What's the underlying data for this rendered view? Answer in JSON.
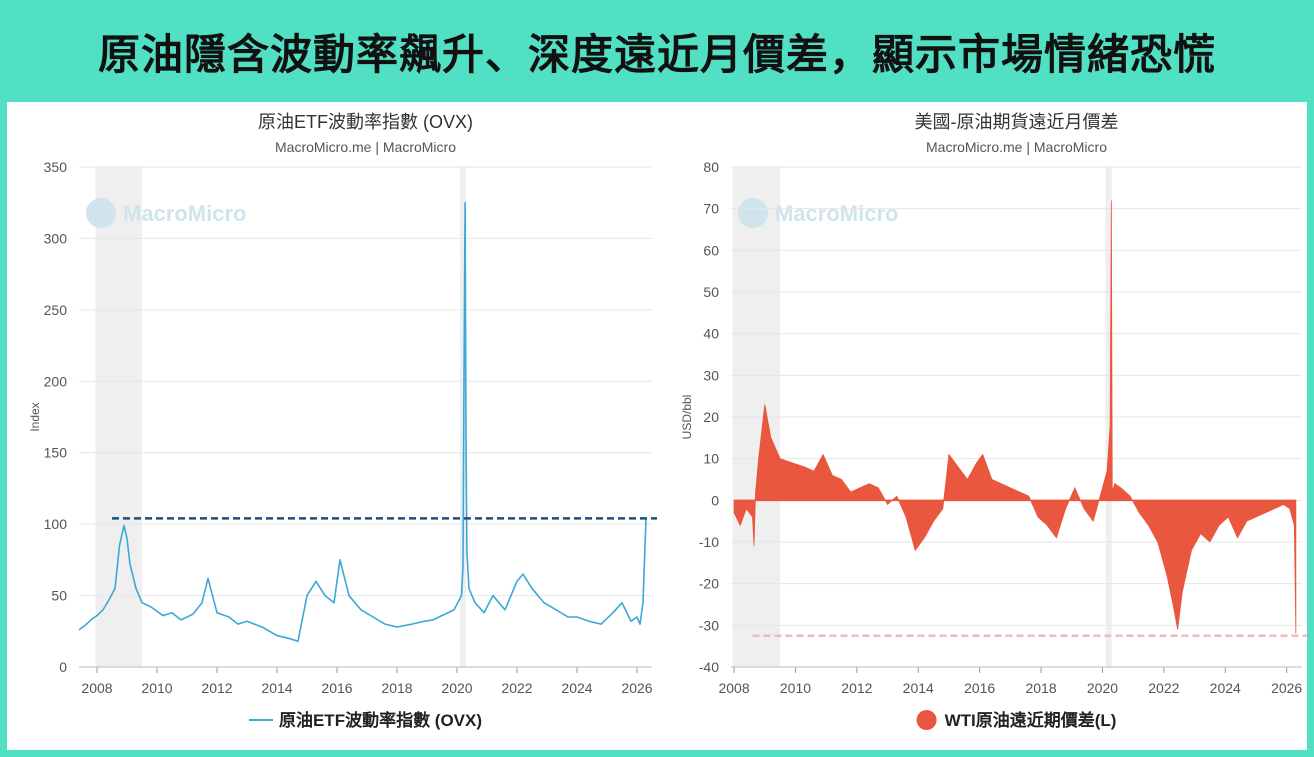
{
  "headline": "原油隱含波動率飆升、深度遠近月價差，顯示市場情緒恐慌",
  "watermark": "MacroMicro",
  "colors": {
    "background": "#52e0c4",
    "ovx_line": "#3ba8d8",
    "ovx_threshold": "#1f4f7a",
    "spread_fill": "#e9573f",
    "spread_threshold": "#f4b8b8",
    "recession_shade": "#efefef"
  },
  "chart_data": [
    {
      "type": "line",
      "title": "原油ETF波動率指數 (OVX)",
      "subtitle": "MacroMicro.me | MacroMicro",
      "xlabel": "",
      "ylabel": "Index",
      "xlim": [
        2007.4,
        2026.5
      ],
      "ylim": [
        0,
        350
      ],
      "yticks": [
        0,
        50,
        100,
        150,
        200,
        250,
        300,
        350
      ],
      "xticks": [
        2008,
        2010,
        2012,
        2014,
        2016,
        2018,
        2020,
        2022,
        2024,
        2026
      ],
      "grid": true,
      "legend_position": "bottom",
      "shaded_ranges": [
        [
          2007.95,
          2009.5
        ],
        [
          2020.1,
          2020.3
        ]
      ],
      "reference_line": {
        "y": 104,
        "from_x": 2008.5,
        "style": "dashed"
      },
      "series": [
        {
          "name": "原油ETF波動率指數 (OVX)",
          "x": [
            2007.4,
            2007.6,
            2007.8,
            2008.0,
            2008.2,
            2008.4,
            2008.6,
            2008.75,
            2008.9,
            2009.0,
            2009.1,
            2009.3,
            2009.5,
            2009.8,
            2010.2,
            2010.5,
            2010.8,
            2011.2,
            2011.5,
            2011.7,
            2012.0,
            2012.4,
            2012.7,
            2013.0,
            2013.5,
            2014.0,
            2014.4,
            2014.7,
            2015.0,
            2015.3,
            2015.6,
            2015.9,
            2016.1,
            2016.4,
            2016.8,
            2017.2,
            2017.6,
            2018.0,
            2018.5,
            2018.9,
            2019.2,
            2019.6,
            2019.9,
            2020.15,
            2020.2,
            2020.23,
            2020.27,
            2020.3,
            2020.33,
            2020.4,
            2020.6,
            2020.9,
            2021.2,
            2021.6,
            2022.0,
            2022.2,
            2022.5,
            2022.9,
            2023.3,
            2023.7,
            2024.0,
            2024.4,
            2024.8,
            2025.2,
            2025.5,
            2025.8,
            2026.0,
            2026.1,
            2026.2,
            2026.25,
            2026.3
          ],
          "values": [
            26,
            29,
            33,
            36,
            40,
            47,
            55,
            85,
            99,
            90,
            72,
            55,
            45,
            42,
            36,
            38,
            33,
            37,
            45,
            62,
            38,
            35,
            30,
            32,
            28,
            22,
            20,
            18,
            50,
            60,
            50,
            45,
            75,
            50,
            40,
            35,
            30,
            28,
            30,
            32,
            33,
            37,
            40,
            50,
            70,
            190,
            325,
            160,
            80,
            55,
            45,
            38,
            50,
            40,
            60,
            65,
            55,
            45,
            40,
            35,
            35,
            32,
            30,
            38,
            45,
            32,
            35,
            30,
            45,
            75,
            104
          ]
        }
      ]
    },
    {
      "type": "area",
      "title": "美國-原油期貨遠近月價差",
      "subtitle": "MacroMicro.me | MacroMicro",
      "xlabel": "",
      "ylabel": "USD/bbl",
      "xlim": [
        2007.9,
        2026.5
      ],
      "ylim": [
        -40,
        80
      ],
      "yticks": [
        -40,
        -30,
        -20,
        -10,
        0,
        10,
        20,
        30,
        40,
        50,
        60,
        70,
        80
      ],
      "xticks": [
        2008,
        2010,
        2012,
        2014,
        2016,
        2018,
        2020,
        2022,
        2024,
        2026
      ],
      "grid": true,
      "legend_position": "bottom",
      "shaded_ranges": [
        [
          2007.95,
          2009.5
        ],
        [
          2020.1,
          2020.3
        ]
      ],
      "reference_line": {
        "y": -32.5,
        "from_x": 2008.6,
        "style": "dashed"
      },
      "series": [
        {
          "name": "WTI原油遠近期價差(L)",
          "x": [
            2008.0,
            2008.2,
            2008.4,
            2008.6,
            2008.65,
            2008.7,
            2008.8,
            2009.0,
            2009.2,
            2009.5,
            2009.9,
            2010.3,
            2010.6,
            2010.9,
            2011.2,
            2011.5,
            2011.8,
            2012.1,
            2012.4,
            2012.7,
            2013.0,
            2013.3,
            2013.6,
            2013.9,
            2014.2,
            2014.5,
            2014.8,
            2015.0,
            2015.3,
            2015.6,
            2015.9,
            2016.1,
            2016.4,
            2016.7,
            2017.0,
            2017.3,
            2017.6,
            2017.9,
            2018.2,
            2018.5,
            2018.8,
            2019.1,
            2019.4,
            2019.7,
            2020.0,
            2020.15,
            2020.25,
            2020.29,
            2020.32,
            2020.4,
            2020.6,
            2020.9,
            2021.2,
            2021.5,
            2021.8,
            2022.1,
            2022.3,
            2022.45,
            2022.6,
            2022.9,
            2023.2,
            2023.5,
            2023.8,
            2024.1,
            2024.4,
            2024.7,
            2025.0,
            2025.3,
            2025.6,
            2025.9,
            2026.1,
            2026.25,
            2026.3
          ],
          "values": [
            -3,
            -6,
            -2,
            -4,
            -11,
            2,
            10,
            23,
            15,
            10,
            9,
            8,
            7,
            11,
            6,
            5,
            2,
            3,
            4,
            3,
            -1,
            1,
            -4,
            -12,
            -9,
            -5,
            -2,
            11,
            8,
            5,
            9,
            11,
            5,
            4,
            3,
            2,
            1,
            -4,
            -6,
            -9,
            -2,
            3,
            -2,
            -5,
            3,
            7,
            18,
            72,
            2,
            4,
            3,
            1,
            -3,
            -6,
            -10,
            -18,
            -25,
            -31,
            -22,
            -12,
            -8,
            -10,
            -6,
            -4,
            -9,
            -5,
            -4,
            -3,
            -2,
            -1,
            -2,
            -6,
            -32
          ]
        }
      ]
    }
  ]
}
